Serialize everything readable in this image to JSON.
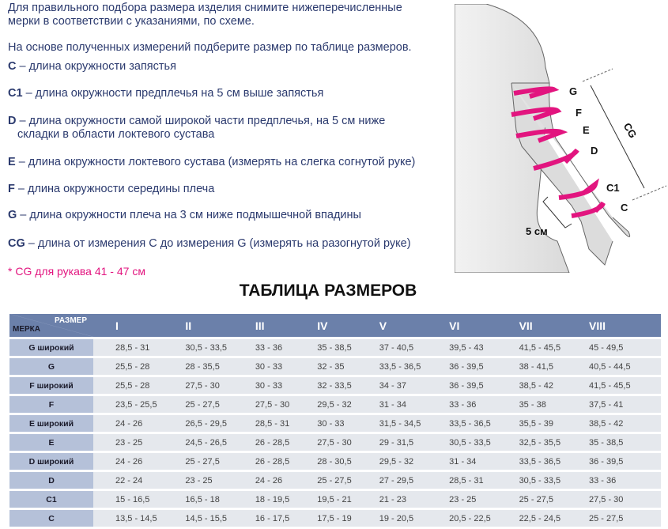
{
  "intro": {
    "line1": "Для правильного подбора размера изделия снимите нижеперечисленные",
    "line2": "мерки в соответствии с указаниями, по схеме.",
    "line3": "На основе полученных измерений подберите размер по таблице размеров."
  },
  "measures": [
    {
      "code": "C",
      "text": " – длина окружности запястья"
    },
    {
      "code": "C1",
      "text": "  – длина окружности предплечья на 5 см выше запястья"
    },
    {
      "code": "D",
      "text": "  – длина окружности самой широкой части предплечья, на 5 см ниже",
      "text2": "складки в области локтевого сустава"
    },
    {
      "code": "E",
      "text": " – длина окружности локтевого сустава (измерять на слегка согнутой руке)"
    },
    {
      "code": "F",
      "text": " – длина окружности середины плеча"
    },
    {
      "code": "G",
      "text": " – длина окружности плеча на 3 см ниже подмышечной впадины"
    },
    {
      "code": "CG",
      "text": " – длина от измерения C до измерения G (измерять на разогнутой руке)"
    }
  ],
  "note": "* CG для рукава  41 - 47 см",
  "diagram": {
    "labels": [
      "G",
      "F",
      "E",
      "D",
      "C1",
      "C",
      "CG",
      "5 см"
    ],
    "arrow_color": "#e2157f"
  },
  "table": {
    "title": "ТАБЛИЦА РАЗМЕРОВ",
    "corner_size": "РАЗМЕР",
    "corner_measure": "МЕРКА",
    "sizes": [
      "I",
      "II",
      "III",
      "IV",
      "V",
      "VI",
      "VII",
      "VIII"
    ],
    "rows": [
      {
        "label": "G широкий",
        "values": [
          "28,5 - 31",
          "30,5 - 33,5",
          "33 - 36",
          "35 - 38,5",
          "37 - 40,5",
          "39,5 - 43",
          "41,5 - 45,5",
          "45 - 49,5"
        ]
      },
      {
        "label": "G",
        "values": [
          "25,5 - 28",
          "28 - 35,5",
          "30 - 33",
          "32 - 35",
          "33,5 - 36,5",
          "36 - 39,5",
          "38 - 41,5",
          "40,5 - 44,5"
        ]
      },
      {
        "label": "F широкий",
        "values": [
          "25,5 - 28",
          "27,5 - 30",
          "30 - 33",
          "32 - 33,5",
          "34 - 37",
          "36 - 39,5",
          "38,5 - 42",
          "41,5 - 45,5"
        ]
      },
      {
        "label": "F",
        "values": [
          "23,5 - 25,5",
          "25 - 27,5",
          "27,5 - 30",
          "29,5 - 32",
          "31 - 34",
          "33 - 36",
          "35 - 38",
          "37,5 - 41"
        ]
      },
      {
        "label": "E широкий",
        "values": [
          "24 - 26",
          "26,5 - 29,5",
          "28,5 - 31",
          "30 - 33",
          "31,5 - 34,5",
          "33,5 - 36,5",
          "35,5 - 39",
          "38,5 - 42"
        ]
      },
      {
        "label": "E",
        "values": [
          "23 - 25",
          "24,5 - 26,5",
          "26 - 28,5",
          "27,5 - 30",
          "29 - 31,5",
          "30,5 - 33,5",
          "32,5 - 35,5",
          "35 - 38,5"
        ]
      },
      {
        "label": "D широкий",
        "values": [
          "24 - 26",
          "25 - 27,5",
          "26 - 28,5",
          "28 - 30,5",
          "29,5 - 32",
          "31 - 34",
          "33,5 - 36,5",
          "36 - 39,5"
        ]
      },
      {
        "label": "D",
        "values": [
          "22 - 24",
          "23 - 25",
          "24 - 26",
          "25 - 27,5",
          "27 - 29,5",
          "28,5 - 31",
          "30,5 - 33,5",
          "33 - 36"
        ]
      },
      {
        "label": "C1",
        "values": [
          "15 - 16,5",
          "16,5 - 18",
          "18 - 19,5",
          "19,5 - 21",
          "21 - 23",
          "23 - 25",
          "25 - 27,5",
          "27,5 - 30"
        ]
      },
      {
        "label": "C",
        "values": [
          "13,5 - 14,5",
          "14,5 - 15,5",
          "16 - 17,5",
          "17,5 - 19",
          "19 - 20,5",
          "20,5 - 22,5",
          "22,5 - 24,5",
          "25 - 27,5"
        ]
      }
    ]
  }
}
